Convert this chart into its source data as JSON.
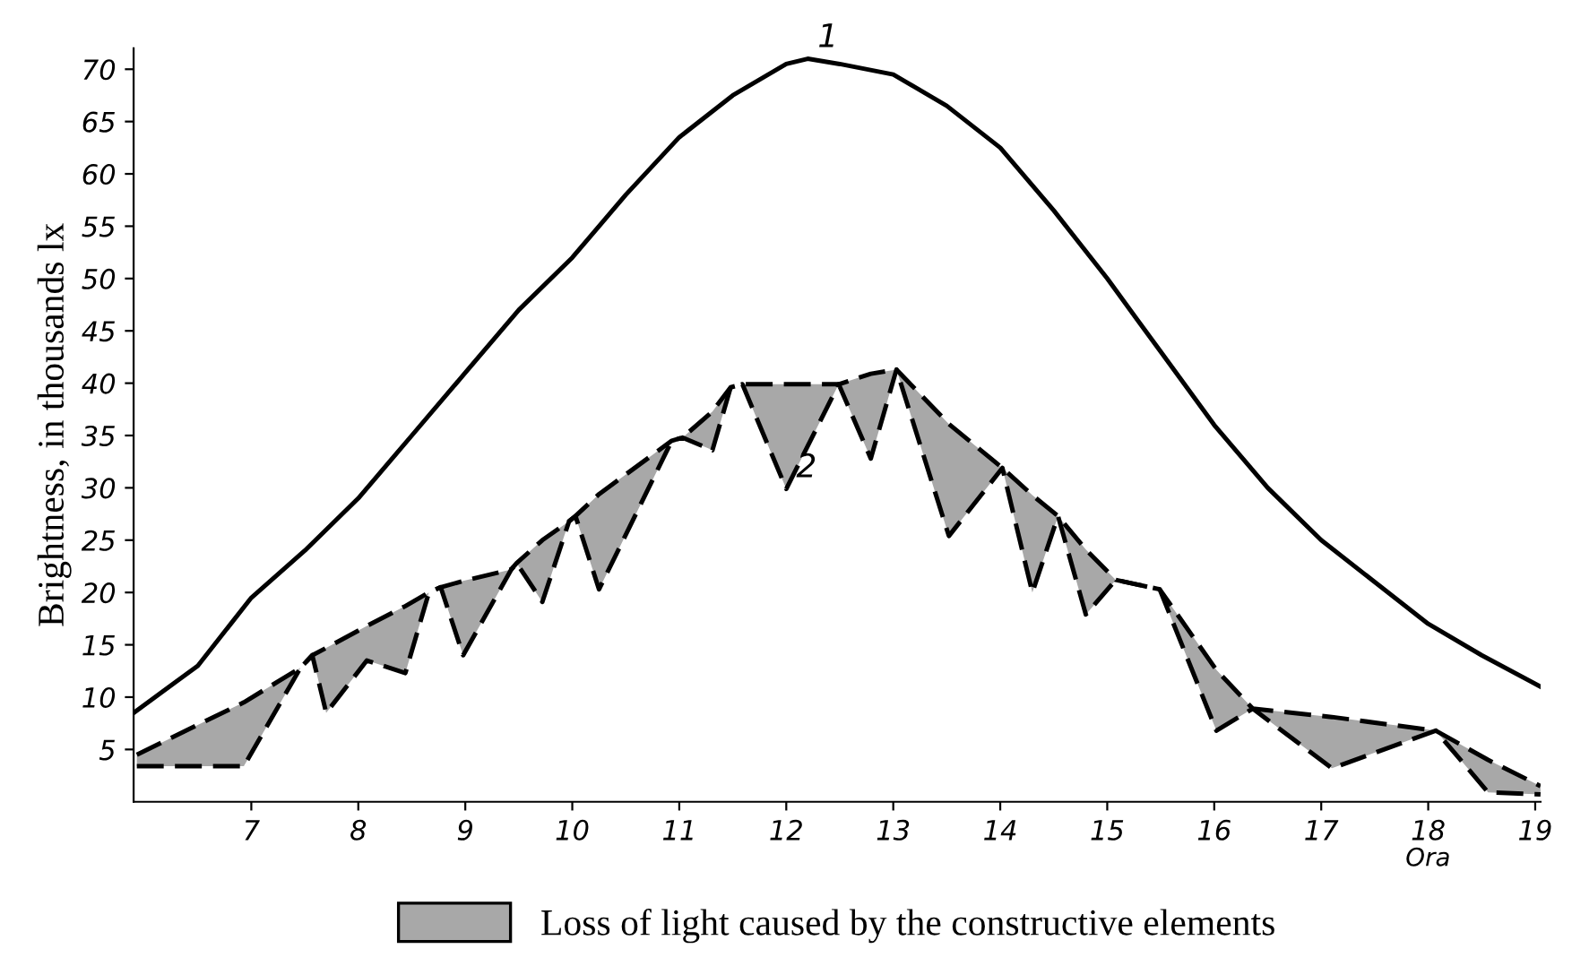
{
  "chart_data": {
    "type": "line",
    "ylabel": "Brightness, in thousands lx",
    "xlabel": "Ora",
    "xlim": [
      5.9,
      19.05
    ],
    "xticks": [
      7,
      8,
      9,
      10,
      11,
      12,
      13,
      14,
      15,
      16,
      17,
      18,
      19
    ],
    "ylim": [
      0,
      72
    ],
    "yticks": [
      5,
      10,
      15,
      20,
      25,
      30,
      35,
      40,
      45,
      50,
      55,
      60,
      65,
      70
    ],
    "grid": false,
    "legend": "bottom",
    "marker": "none",
    "annotations": [
      {
        "text": "1",
        "x": 12.2,
        "y": 71
      },
      {
        "text": "2",
        "x": 12.0,
        "y": 29.9
      }
    ],
    "series": [
      {
        "color": "#000000",
        "line_style": "solid",
        "x": [
          5.9,
          6.5,
          7,
          7.5,
          8,
          8.5,
          9,
          9.5,
          10,
          10.5,
          11,
          11.5,
          12,
          12.2,
          12.5,
          13,
          13.5,
          14,
          14.5,
          15,
          15.5,
          16,
          16.5,
          17,
          17.5,
          18,
          18.5,
          19.05
        ],
        "values": [
          8.5,
          13,
          19.5,
          24,
          29,
          35,
          41,
          47,
          52,
          58,
          63.5,
          67.5,
          70.5,
          71,
          70.5,
          69.5,
          66.5,
          62.5,
          56.5,
          50,
          43,
          36,
          30,
          25,
          21,
          17,
          14,
          11
        ]
      },
      {
        "name": "Loss of light caused by the constructive elements",
        "color": "#000000",
        "line_style": "dashed",
        "x": [
          5.93,
          6.93,
          7.46,
          7.57,
          7.7,
          8.08,
          8.44,
          8.66,
          8.77,
          8.98,
          9.43,
          9.48,
          9.72,
          9.97,
          10.03,
          10.25,
          10.93,
          11.03,
          11.31,
          11.48,
          11.59,
          12.0,
          12.49,
          12.79,
          13.03,
          13.52,
          14.02,
          14.3,
          14.54,
          14.8,
          15.08,
          15.49,
          16.02,
          16.36,
          17.1,
          18.07,
          18.56,
          19.05
        ],
        "values": [
          3.4,
          3.4,
          12.8,
          14,
          8.5,
          13.5,
          12.3,
          20,
          20.5,
          14,
          22.2,
          22.8,
          19.1,
          26.8,
          27.3,
          20.3,
          34.5,
          34.8,
          33.6,
          39.6,
          39.9,
          29.9,
          39.9,
          32.8,
          41.3,
          25.4,
          31.9,
          20,
          27.3,
          17.9,
          21.2,
          20.3,
          6.8,
          8.9,
          3.2,
          6.8,
          0.9,
          0.7
        ],
        "lower": [
          3.4,
          3.4,
          12.8,
          14,
          8.5,
          13.5,
          12.3,
          20,
          20.5,
          14,
          22.2,
          22.8,
          19.1,
          26.8,
          27.3,
          20.3,
          34.5,
          34.8,
          33.6,
          39.6,
          39.9,
          29.9,
          39.9,
          32.8,
          41.3,
          25.4,
          31.9,
          20,
          27.3,
          17.9,
          21.2,
          20.3,
          6.8,
          8.9,
          3.2,
          6.8,
          0.9,
          0.7
        ],
        "upper": [
          4.5,
          9.5,
          12.8,
          14,
          14.7,
          16.8,
          18.7,
          20,
          20.5,
          21.1,
          22.2,
          22.8,
          25,
          26.8,
          27.3,
          29.4,
          34.5,
          34.8,
          37.3,
          39.6,
          39.9,
          39.9,
          39.9,
          40.9,
          41.3,
          36.1,
          31.9,
          29.3,
          27.3,
          24.1,
          21.2,
          20.3,
          12.6,
          8.9,
          8.1,
          6.8,
          4.0,
          1.5
        ]
      },
      {
        "color": "#000000",
        "line_style": "dashed",
        "x": [
          5.93,
          6.93,
          7.46,
          7.57,
          7.7,
          8.08,
          8.44,
          8.66,
          8.77,
          8.98,
          9.43,
          9.48,
          9.72,
          9.97,
          10.03,
          10.25,
          10.93,
          11.03,
          11.31,
          11.48,
          11.59,
          12.0,
          12.49,
          12.79,
          13.03,
          13.52,
          14.02,
          14.3,
          14.54,
          14.8,
          15.08,
          15.49,
          16.02,
          16.36,
          17.1,
          18.07,
          18.56,
          19.05
        ],
        "values": [
          4.5,
          9.5,
          12.8,
          14,
          14.7,
          16.8,
          18.7,
          20,
          20.5,
          21.1,
          22.2,
          22.8,
          25,
          26.8,
          27.3,
          29.4,
          34.5,
          34.8,
          37.3,
          39.6,
          39.9,
          39.9,
          39.9,
          40.9,
          41.3,
          36.1,
          31.9,
          29.3,
          27.3,
          24.1,
          21.2,
          20.3,
          12.6,
          8.9,
          8.1,
          6.8,
          4.0,
          1.5
        ]
      }
    ]
  }
}
